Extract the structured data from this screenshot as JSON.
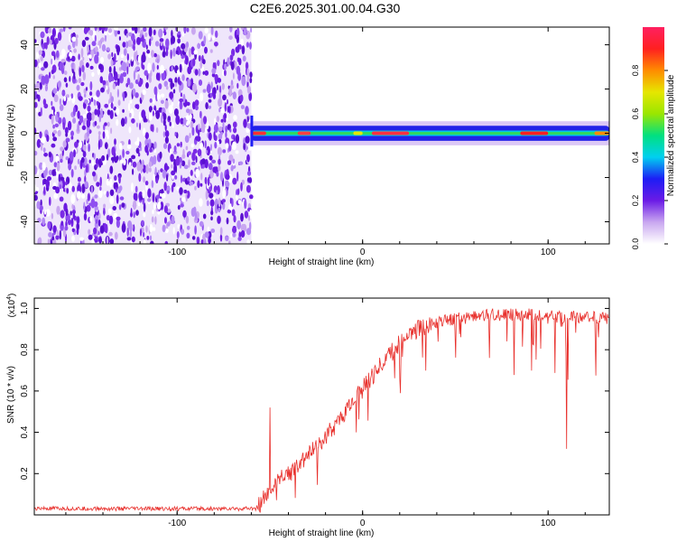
{
  "title": "C2E6.2025.301.00.04.G30",
  "colors": {
    "snr_line": "#e8302c",
    "signal_purple": "#6a1ae0",
    "background": "#ffffff"
  },
  "chart_data": [
    {
      "type": "heatmap",
      "name": "spectrogram",
      "xlabel": "Height of straight line (km)",
      "ylabel": "Frequency (Hz)",
      "xlim": [
        -177,
        133
      ],
      "ylim": [
        -50,
        48
      ],
      "xticks": [
        -100,
        0,
        100
      ],
      "xtick_labels": [
        "-100",
        "0",
        "100"
      ],
      "yticks": [
        -40,
        -20,
        0,
        20,
        40
      ],
      "ytick_labels": [
        "-40",
        "-20",
        "0",
        "20",
        "40"
      ],
      "noise_region_km": [
        -177,
        -60
      ],
      "signal_band_hz": [
        -3,
        3
      ],
      "colorbar": {
        "label": "Normalized spectral amplitude",
        "range": [
          0.0,
          1.0
        ],
        "ticks": [
          0.0,
          0.2,
          0.4,
          0.6,
          0.8
        ],
        "tick_labels": [
          "0.0",
          "0.2",
          "0.4",
          "0.6",
          "0.8"
        ],
        "stops": [
          "#ffffff",
          "#c9a7f0",
          "#6b1be6",
          "#1d1df5",
          "#00d0f0",
          "#00e080",
          "#9ae600",
          "#e6e600",
          "#ff8c00",
          "#ff2020",
          "#ff2060"
        ]
      }
    },
    {
      "type": "line",
      "name": "snr",
      "xlabel": "Height of straight line (km)",
      "ylabel": "SNR (10 * v/v)",
      "exponent_label": "(x10",
      "exponent_value": "4",
      "xlim": [
        -177,
        133
      ],
      "ylim": [
        0.0,
        1.05
      ],
      "xticks": [
        -100,
        0,
        100
      ],
      "xtick_labels": [
        "-100",
        "0",
        "100"
      ],
      "yticks": [
        0.2,
        0.4,
        0.6,
        0.8,
        1.0
      ],
      "ytick_labels": [
        "0.2",
        "0.4",
        "0.6",
        "0.8",
        "1.0"
      ],
      "series": [
        {
          "name": "SNR",
          "x": [
            -177,
            -150,
            -120,
            -90,
            -65,
            -57,
            -55,
            -52,
            -50,
            -45,
            -40,
            -35,
            -30,
            -25,
            -20,
            -15,
            -10,
            -5,
            0,
            5,
            10,
            15,
            20,
            25,
            30,
            35,
            40,
            50,
            60,
            70,
            80,
            90,
            100,
            110,
            120,
            133
          ],
          "y": [
            0.03,
            0.03,
            0.03,
            0.03,
            0.03,
            0.03,
            0.05,
            0.1,
            0.14,
            0.17,
            0.2,
            0.23,
            0.28,
            0.33,
            0.38,
            0.43,
            0.49,
            0.55,
            0.61,
            0.67,
            0.73,
            0.78,
            0.83,
            0.87,
            0.9,
            0.92,
            0.94,
            0.95,
            0.96,
            0.97,
            0.97,
            0.97,
            0.96,
            0.96,
            0.96,
            0.95
          ]
        }
      ]
    }
  ]
}
